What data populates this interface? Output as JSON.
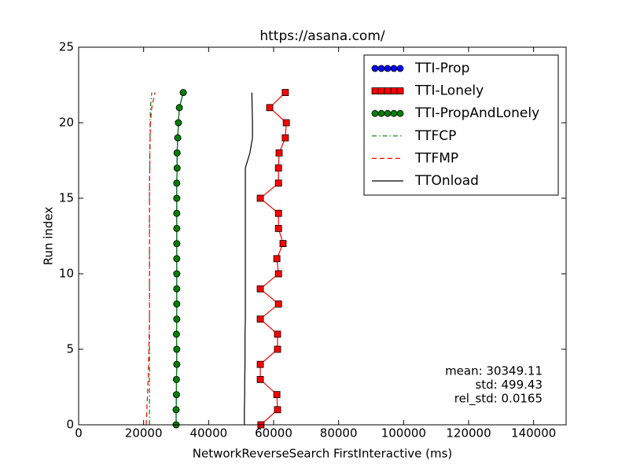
{
  "chart_data": {
    "type": "line",
    "title": "https://asana.com/",
    "xlabel": "NetworkReverseSearch FirstInteractive (ms)",
    "ylabel": "Run index",
    "y": [
      0,
      1,
      2,
      3,
      4,
      5,
      6,
      7,
      8,
      9,
      10,
      11,
      12,
      13,
      14,
      15,
      16,
      17,
      18,
      19,
      20,
      21,
      22
    ],
    "xlim": [
      0,
      150000
    ],
    "ylim": [
      0,
      25
    ],
    "xticks": [
      0,
      20000,
      40000,
      60000,
      80000,
      100000,
      120000,
      140000
    ],
    "yticks": [
      0,
      5,
      10,
      15,
      20,
      25
    ],
    "legend": "upper right",
    "series": [
      {
        "name": "TTI-Prop",
        "color": "#0000ff",
        "marker": "circle",
        "linestyle": "solid",
        "values": [
          30000,
          30000,
          30100,
          30100,
          30200,
          30200,
          30100,
          30200,
          30200,
          30200,
          30200,
          30200,
          30200,
          30200,
          30200,
          30200,
          30200,
          30300,
          30300,
          30500,
          30700,
          31000,
          32200
        ]
      },
      {
        "name": "TTI-Lonely",
        "color": "#ff0000",
        "marker": "square",
        "linestyle": "solid",
        "values": [
          56100,
          61200,
          61000,
          55900,
          55900,
          61200,
          61200,
          55900,
          61500,
          55900,
          61500,
          61000,
          62900,
          61500,
          61500,
          55900,
          61500,
          61500,
          61700,
          63600,
          63900,
          58800,
          63600
        ]
      },
      {
        "name": "TTI-PropAndLonely",
        "color": "#008000",
        "marker": "circle",
        "linestyle": "solid",
        "values": [
          30000,
          30000,
          30100,
          30100,
          30200,
          30200,
          30100,
          30200,
          30200,
          30200,
          30200,
          30200,
          30200,
          30200,
          30200,
          30200,
          30200,
          30300,
          30300,
          30500,
          30700,
          31000,
          32200
        ]
      },
      {
        "name": "TTFCP",
        "color": "#008000",
        "marker": null,
        "linestyle": "dashdot",
        "values": [
          21800,
          21800,
          21800,
          21800,
          21800,
          21800,
          21800,
          21800,
          21800,
          21800,
          21800,
          21800,
          21800,
          21800,
          21800,
          21800,
          21800,
          21900,
          21900,
          22000,
          22000,
          22100,
          22500
        ]
      },
      {
        "name": "TTFMP",
        "color": "#ff0000",
        "marker": null,
        "linestyle": "dashed",
        "values": [
          20800,
          21000,
          21200,
          21400,
          21500,
          21600,
          21700,
          21800,
          21800,
          21800,
          21800,
          21800,
          21800,
          21800,
          21800,
          21800,
          21800,
          21900,
          21900,
          22000,
          22100,
          22500,
          23500
        ]
      },
      {
        "name": "TTOnload",
        "color": "#000000",
        "marker": null,
        "linestyle": "solid",
        "values": [
          51000,
          51000,
          51100,
          51100,
          51200,
          51200,
          51200,
          51300,
          51300,
          51300,
          51300,
          51300,
          51300,
          51300,
          51300,
          51300,
          51300,
          51300,
          52700,
          53500,
          53500,
          53400,
          53300
        ]
      }
    ],
    "annotations": [
      "mean: 30349.11",
      "std: 499.43",
      "rel_std: 0.0165"
    ]
  }
}
